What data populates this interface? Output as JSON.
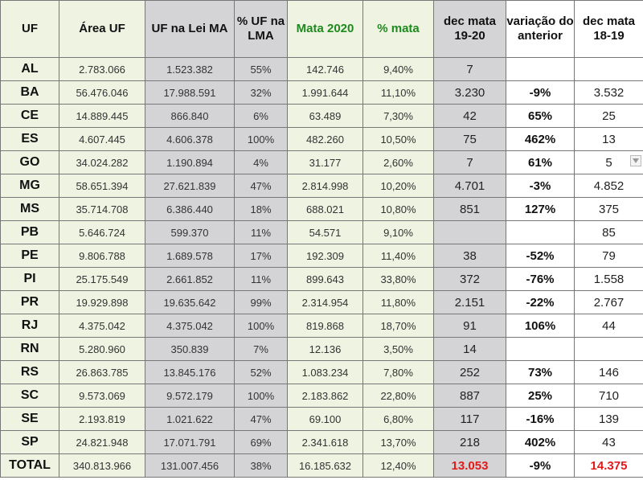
{
  "headers": [
    "UF",
    "Área UF",
    "UF na Lei MA",
    "% UF na LMA",
    "Mata 2020",
    "% mata",
    "dec mata 19-20",
    "variação do anterior",
    "dec mata 18-19"
  ],
  "rows": [
    [
      "AL",
      "2.783.066",
      "1.523.382",
      "55%",
      "142.746",
      "9,40%",
      "7",
      "",
      ""
    ],
    [
      "BA",
      "56.476.046",
      "17.988.591",
      "32%",
      "1.991.644",
      "11,10%",
      "3.230",
      "-9%",
      "3.532"
    ],
    [
      "CE",
      "14.889.445",
      "866.840",
      "6%",
      "63.489",
      "7,30%",
      "42",
      "65%",
      "25"
    ],
    [
      "ES",
      "4.607.445",
      "4.606.378",
      "100%",
      "482.260",
      "10,50%",
      "75",
      "462%",
      "13"
    ],
    [
      "GO",
      "34.024.282",
      "1.190.894",
      "4%",
      "31.177",
      "2,60%",
      "7",
      "61%",
      "5"
    ],
    [
      "MG",
      "58.651.394",
      "27.621.839",
      "47%",
      "2.814.998",
      "10,20%",
      "4.701",
      "-3%",
      "4.852"
    ],
    [
      "MS",
      "35.714.708",
      "6.386.440",
      "18%",
      "688.021",
      "10,80%",
      "851",
      "127%",
      "375"
    ],
    [
      "PB",
      "5.646.724",
      "599.370",
      "11%",
      "54.571",
      "9,10%",
      "",
      "",
      "85"
    ],
    [
      "PE",
      "9.806.788",
      "1.689.578",
      "17%",
      "192.309",
      "11,40%",
      "38",
      "-52%",
      "79"
    ],
    [
      "PI",
      "25.175.549",
      "2.661.852",
      "11%",
      "899.643",
      "33,80%",
      "372",
      "-76%",
      "1.558"
    ],
    [
      "PR",
      "19.929.898",
      "19.635.642",
      "99%",
      "2.314.954",
      "11,80%",
      "2.151",
      "-22%",
      "2.767"
    ],
    [
      "RJ",
      "4.375.042",
      "4.375.042",
      "100%",
      "819.868",
      "18,70%",
      "91",
      "106%",
      "44"
    ],
    [
      "RN",
      "5.280.960",
      "350.839",
      "7%",
      "12.136",
      "3,50%",
      "14",
      "",
      ""
    ],
    [
      "RS",
      "26.863.785",
      "13.845.176",
      "52%",
      "1.083.234",
      "7,80%",
      "252",
      "73%",
      "146"
    ],
    [
      "SC",
      "9.573.069",
      "9.572.179",
      "100%",
      "2.183.862",
      "22,80%",
      "887",
      "25%",
      "710"
    ],
    [
      "SE",
      "2.193.819",
      "1.021.622",
      "47%",
      "69.100",
      "6,80%",
      "117",
      "-16%",
      "139"
    ],
    [
      "SP",
      "24.821.948",
      "17.071.791",
      "69%",
      "2.341.618",
      "13,70%",
      "218",
      "402%",
      "43"
    ],
    [
      "TOTAL",
      "340.813.966",
      "131.007.456",
      "38%",
      "16.185.632",
      "12,40%",
      "13.053",
      "-9%",
      "14.375"
    ]
  ],
  "colors": {
    "green_header_text": "#1e8a1e",
    "total_highlight": "#e31a1a",
    "green_bg": "#eef3e2",
    "gray_bg": "#d4d4d6"
  },
  "icons": {
    "filter_dropdown": "chevron-down-icon"
  }
}
